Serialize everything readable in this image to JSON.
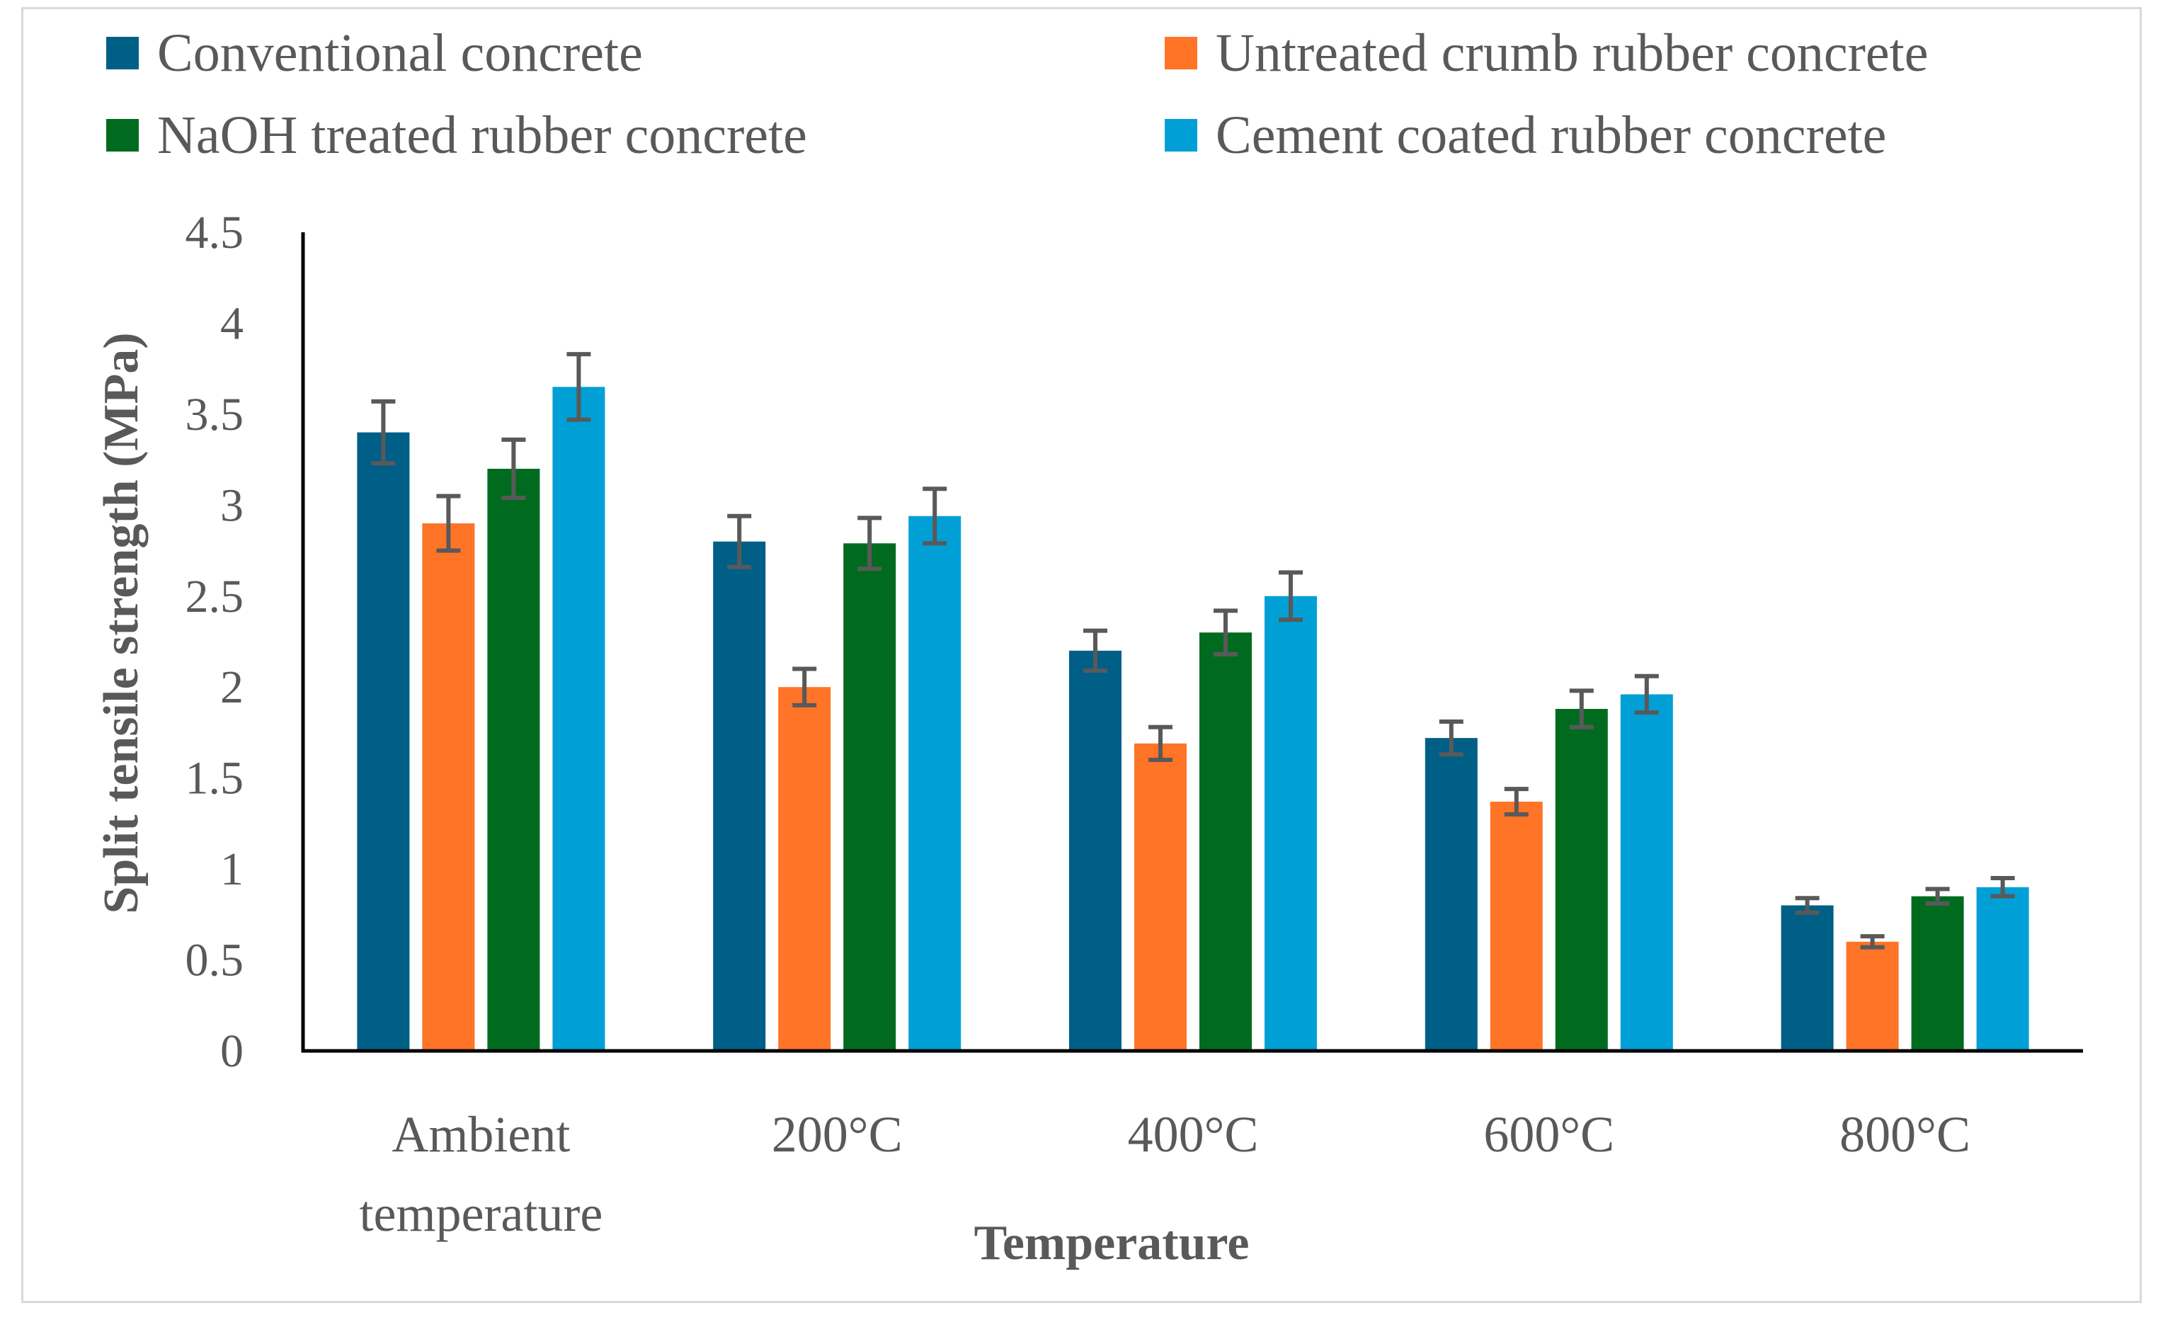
{
  "chart_data": {
    "type": "bar",
    "title": "",
    "xlabel": "Temperature",
    "ylabel": "Split tensile strength (MPa)",
    "ylim": [
      0,
      4.5
    ],
    "yticks": [
      "0",
      "0.5",
      "1",
      "1.5",
      "2",
      "2.5",
      "3",
      "3.5",
      "4",
      "4.5"
    ],
    "categories": [
      [
        "Ambient",
        "temperature"
      ],
      [
        "200°C"
      ],
      [
        "400°C"
      ],
      [
        "600°C"
      ],
      [
        "800°C"
      ]
    ],
    "series": [
      {
        "name": "Conventional concrete",
        "color": "#005f86",
        "values": [
          3.4,
          2.8,
          2.2,
          1.72,
          0.8
        ],
        "errors": [
          0.17,
          0.14,
          0.11,
          0.09,
          0.04
        ]
      },
      {
        "name": "Untreated crumb rubber concrete",
        "color": "#ff7427",
        "values": [
          2.9,
          2.0,
          1.69,
          1.37,
          0.6
        ],
        "errors": [
          0.15,
          0.1,
          0.09,
          0.07,
          0.03
        ]
      },
      {
        "name": "NaOH treated rubber concrete",
        "color": "#006b1f",
        "values": [
          3.2,
          2.79,
          2.3,
          1.88,
          0.85
        ],
        "errors": [
          0.16,
          0.14,
          0.12,
          0.1,
          0.04
        ]
      },
      {
        "name": "Cement coated rubber concrete",
        "color": "#00a0d6",
        "values": [
          3.65,
          2.94,
          2.5,
          1.96,
          0.9
        ],
        "errors": [
          0.18,
          0.15,
          0.13,
          0.1,
          0.05
        ]
      }
    ],
    "error_bar_color": "#595959",
    "legend_position": "top",
    "grid": false
  }
}
